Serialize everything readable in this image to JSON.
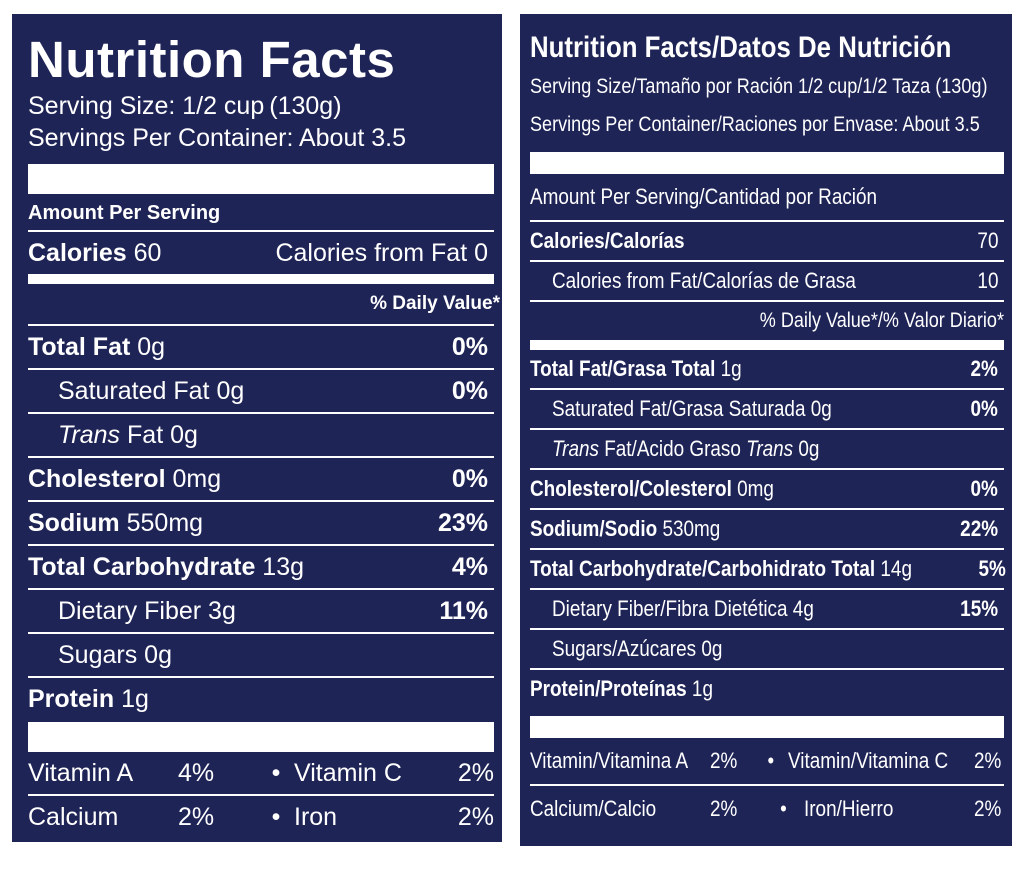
{
  "left": {
    "title": "Nutrition Facts",
    "serving_size": "Serving Size: 1/2 cup (130g)",
    "servings_per_container": "Servings Per Container: About 3.5",
    "amount_per_serving": "Amount Per Serving",
    "calories_label": "Calories",
    "calories_value": "60",
    "calories_from_fat": "Calories from Fat 0",
    "daily_value_header": "% Daily Value*",
    "rows": [
      {
        "name": "Total Fat",
        "amount": "0g",
        "pct": "0%",
        "bold": true
      },
      {
        "name": "Saturated Fat",
        "amount": "0g",
        "pct": "0%",
        "indent": true
      },
      {
        "name": "Trans",
        "name_rest": "Fat",
        "amount": "0g",
        "pct": "",
        "indent": true,
        "italic": true
      },
      {
        "name": "Cholesterol",
        "amount": "0mg",
        "pct": "0%",
        "bold": true
      },
      {
        "name": "Sodium",
        "amount": "550mg",
        "pct": "23%",
        "bold": true
      },
      {
        "name": "Total Carbohydrate",
        "amount": "13g",
        "pct": "4%",
        "bold": true
      },
      {
        "name": "Dietary Fiber",
        "amount": "3g",
        "pct": "11%",
        "indent": true
      },
      {
        "name": "Sugars",
        "amount": "0g",
        "pct": "",
        "indent": true
      },
      {
        "name": "Protein",
        "amount": "1g",
        "pct": "",
        "bold": true
      }
    ],
    "vitamins": [
      {
        "a": "Vitamin A",
        "a_pct": "4%",
        "b": "Vitamin C",
        "b_pct": "2%"
      },
      {
        "a": "Calcium",
        "a_pct": "2%",
        "b": "Iron",
        "b_pct": "2%"
      }
    ]
  },
  "right": {
    "title": "Nutrition Facts/Datos De Nutrición",
    "serving_size": "Serving Size/Tamaño por Ración 1/2 cup/1/2 Taza (130g)",
    "servings_per_container": "Servings Per Container/Raciones por Envase: About 3.5",
    "amount_per_serving": "Amount Per Serving/Cantidad por Ración",
    "calories_label": "Calories/Calorías",
    "calories_value": "70",
    "calories_from_fat_label": "Calories from Fat/Calorías de Grasa",
    "calories_from_fat_value": "10",
    "daily_value_header": "% Daily Value*/% Valor Diario*",
    "rows": [
      {
        "name": "Total Fat/Grasa Total",
        "amount": "1g",
        "pct": "2%",
        "bold": true
      },
      {
        "name": "Saturated Fat/Grasa Saturada",
        "amount": "0g",
        "pct": "0%",
        "indent": true
      },
      {
        "name_html_parts": [
          "Trans",
          " Fat/Acido Graso ",
          "Trans",
          " 0g"
        ],
        "pct": "",
        "indent": true,
        "trans": true
      },
      {
        "name": "Cholesterol/Colesterol",
        "amount": "0mg",
        "pct": "0%",
        "bold": true
      },
      {
        "name": "Sodium/Sodio",
        "amount": "530mg",
        "pct": "22%",
        "bold": true
      },
      {
        "name": "Total Carbohydrate/Carbohidrato Total",
        "amount": "14g",
        "pct": "5%",
        "bold": true
      },
      {
        "name": "Dietary Fiber/Fibra Dietética",
        "amount": "4g",
        "pct": "15%",
        "indent": true
      },
      {
        "name": "Sugars/Azúcares",
        "amount": "0g",
        "pct": "",
        "indent": true
      },
      {
        "name": "Protein/Proteínas",
        "amount": "1g",
        "pct": "",
        "bold": true
      }
    ],
    "vitamins": [
      {
        "a": "Vitamin/Vitamina A",
        "a_pct": "2%",
        "b": "Vitamin/Vitamina C",
        "b_pct": "2%"
      },
      {
        "a": "Calcium/Calcio",
        "a_pct": "2%",
        "b": "Iron/Hierro",
        "b_pct": "2%"
      }
    ]
  },
  "bullet": "•",
  "colors": {
    "panel": "#1f2456",
    "text": "#ffffff"
  }
}
